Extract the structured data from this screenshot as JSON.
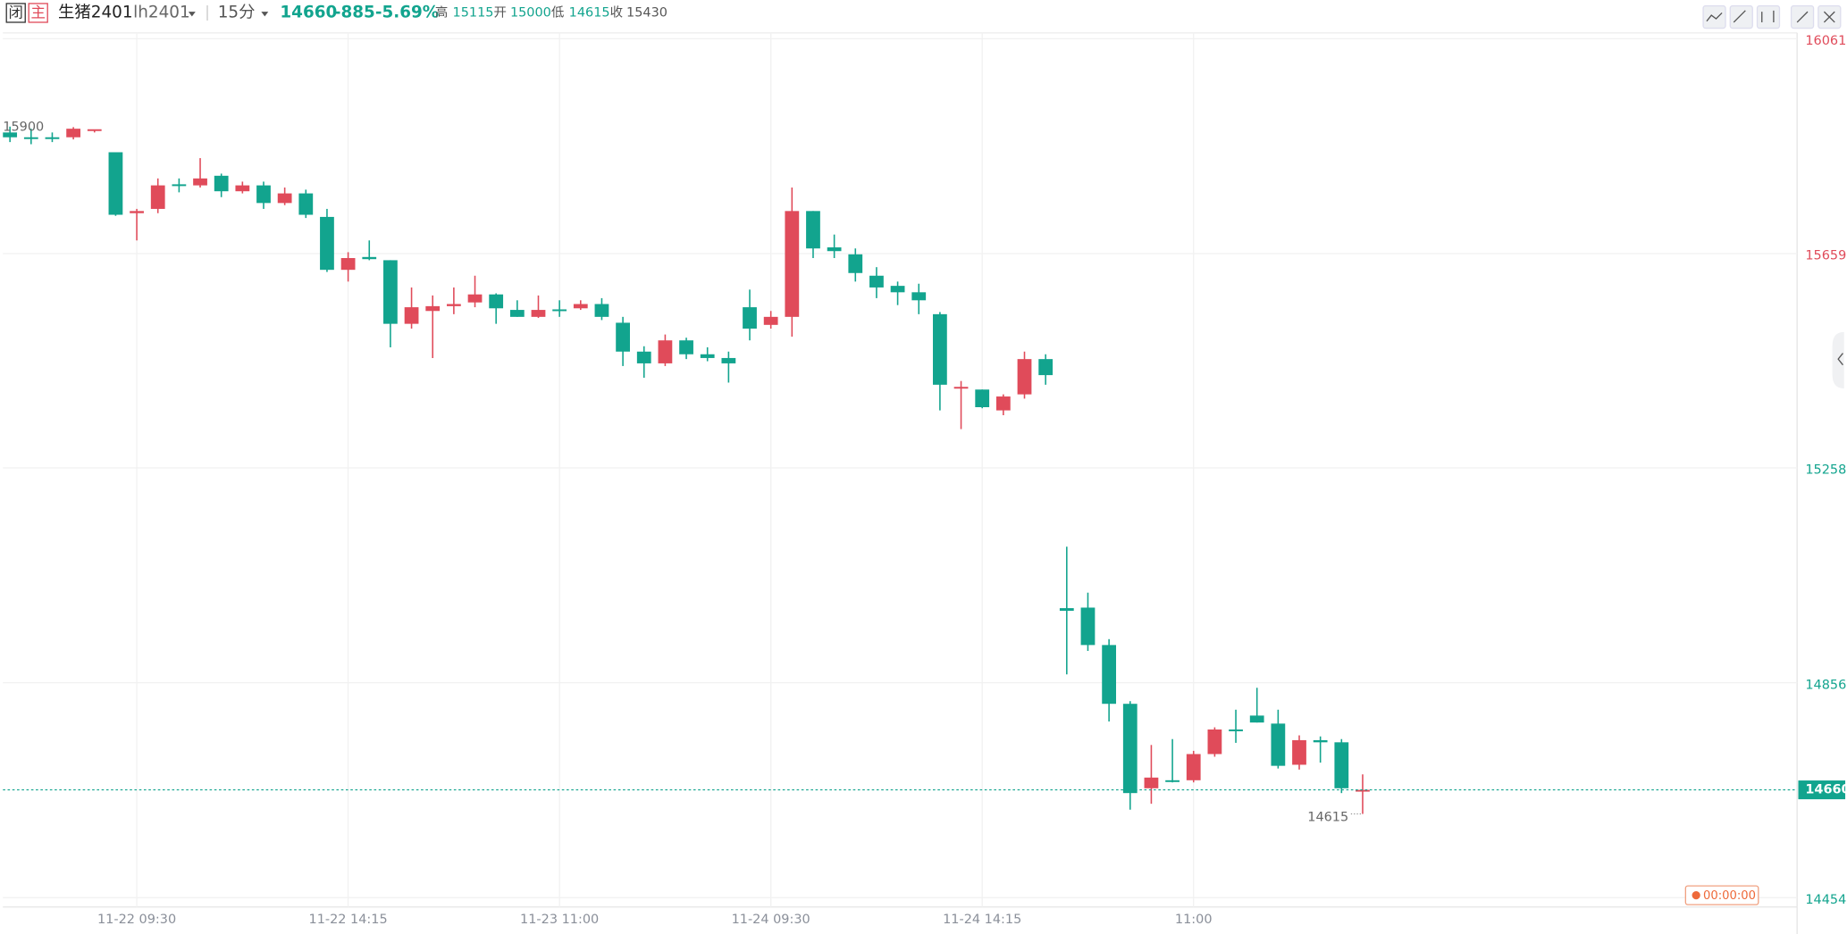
{
  "header": {
    "status": "闭",
    "main": "主",
    "name": "生猪2401",
    "code": "lh2401",
    "period": "15分",
    "price": 14660,
    "change": -885,
    "change_pct": "-5.69%",
    "high_label": "高",
    "high": 15115,
    "open_label": "开",
    "open": 15000,
    "low_label": "低",
    "low": 14615,
    "close_label": "收",
    "prev_close": 15430
  },
  "chart_data": {
    "type": "candlestick",
    "categories": [
      null,
      null,
      null,
      null,
      null,
      null,
      "11-22 09:30",
      null,
      null,
      null,
      null,
      null,
      null,
      null,
      null,
      null,
      "11-22 14:15",
      null,
      null,
      null,
      null,
      null,
      null,
      null,
      null,
      null,
      "11-23 11:00",
      null,
      null,
      null,
      null,
      null,
      null,
      null,
      null,
      null,
      "11-24 09:30",
      null,
      null,
      null,
      null,
      null,
      null,
      null,
      null,
      null,
      "11-24 14:15",
      null,
      null,
      null,
      null,
      null,
      null,
      null,
      null,
      null,
      "11:00",
      null,
      null,
      null,
      null,
      null,
      null,
      null,
      null
    ],
    "open": [
      15890,
      15881,
      15881,
      15881,
      15893,
      15853,
      15739,
      15747,
      15793,
      15791,
      15809,
      15780,
      15791,
      15758,
      15776,
      15732,
      15633,
      15657,
      15651,
      15532,
      15556,
      15565,
      15572,
      15587,
      15558,
      15545,
      15559,
      15561,
      15569,
      15534,
      15480,
      15458,
      15501,
      15475,
      15468,
      15563,
      15530,
      15545,
      15743,
      15675,
      15662,
      15622,
      15603,
      15591,
      15550,
      15412,
      15409,
      15370,
      15400,
      15466,
      15000,
      15001,
      14931,
      14821,
      14663,
      14678,
      14678,
      14727,
      14773,
      14799,
      14784,
      14707,
      14753,
      14749,
      14658
    ],
    "high": [
      15901,
      15897,
      15890,
      15900,
      15895,
      15853,
      15747,
      15804,
      15804,
      15842,
      15813,
      15798,
      15798,
      15787,
      15783,
      15747,
      15666,
      15688,
      15651,
      15600,
      15585,
      15600,
      15622,
      15589,
      15576,
      15585,
      15576,
      15576,
      15580,
      15545,
      15490,
      15512,
      15506,
      15488,
      15480,
      15596,
      15556,
      15787,
      15743,
      15699,
      15673,
      15638,
      15611,
      15607,
      15554,
      15425,
      15409,
      15400,
      15480,
      15475,
      15115,
      15029,
      14942,
      14826,
      14744,
      14755,
      14733,
      14777,
      14810,
      14851,
      14810,
      14762,
      14760,
      14755,
      14689
    ],
    "low": [
      15872,
      15868,
      15872,
      15877,
      15890,
      15734,
      15688,
      15739,
      15778,
      15787,
      15769,
      15776,
      15747,
      15754,
      15730,
      15629,
      15611,
      15651,
      15488,
      15523,
      15468,
      15550,
      15563,
      15532,
      15545,
      15543,
      15545,
      15558,
      15539,
      15453,
      15431,
      15453,
      15466,
      15462,
      15422,
      15501,
      15523,
      15508,
      15655,
      15655,
      15611,
      15580,
      15567,
      15550,
      15370,
      15335,
      15374,
      15361,
      15392,
      15418,
      14876,
      14920,
      14788,
      14623,
      14634,
      14674,
      14674,
      14722,
      14748,
      14786,
      14700,
      14698,
      14711,
      14654,
      14615
    ],
    "close": [
      15881,
      15879,
      15881,
      15897,
      15896,
      15736,
      15743,
      15791,
      15793,
      15804,
      15780,
      15791,
      15758,
      15776,
      15736,
      15633,
      15655,
      15653,
      15532,
      15563,
      15565,
      15569,
      15587,
      15561,
      15545,
      15558,
      15558,
      15569,
      15545,
      15480,
      15458,
      15501,
      15475,
      15468,
      15458,
      15523,
      15545,
      15743,
      15673,
      15668,
      15627,
      15600,
      15591,
      15576,
      15418,
      15414,
      15376,
      15396,
      15466,
      15436,
      14995,
      14931,
      14821,
      14654,
      14683,
      14678,
      14727,
      14773,
      14771,
      14786,
      14705,
      14753,
      14749,
      14663,
      14660
    ],
    "up_color": "#e04b5a",
    "down_color": "#12a48e",
    "ylim": [
      14454,
      16061
    ],
    "yticks": [
      16061,
      15659,
      15258,
      14856,
      14454
    ],
    "grid": true,
    "last_price": 14660,
    "high_mark": 15900,
    "low_mark": 14615,
    "countdown": "00:00:00"
  }
}
